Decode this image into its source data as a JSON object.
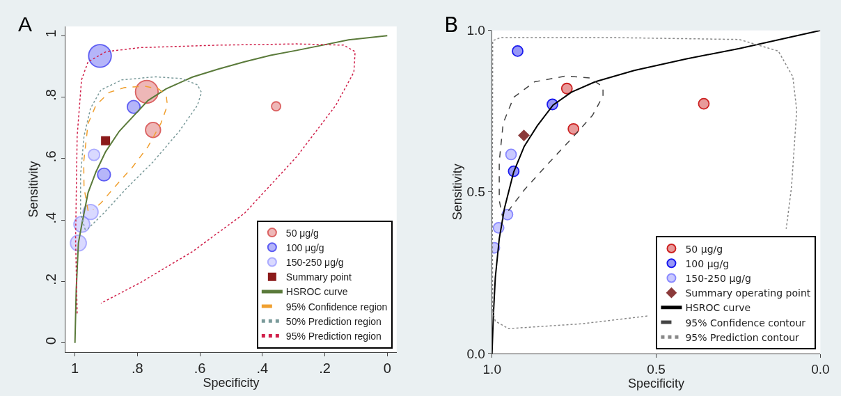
{
  "chart_data": [
    {
      "type": "scatter",
      "title": "A",
      "xlabel": "Specificity",
      "ylabel": "Sensitivity",
      "xlim": [
        1.03,
        -0.03
      ],
      "ylim": [
        -0.03,
        1.03
      ],
      "xticks": [
        1,
        {
          "value": 0.8,
          "label": ".8"
        },
        {
          "value": 0.6,
          "label": ".6"
        },
        {
          "value": 0.4,
          "label": ".4"
        },
        {
          "value": 0.2,
          "label": ".2"
        },
        0
      ],
      "yticks": [
        0,
        {
          "value": 0.2,
          "label": ".2"
        },
        {
          "value": 0.4,
          "label": ".4"
        },
        {
          "value": 0.6,
          "label": ".6"
        },
        {
          "value": 0.8,
          "label": ".8"
        },
        1
      ],
      "legend": "bottom right",
      "series": [
        {
          "name": "50 μg/g",
          "type": "bubble",
          "color": "#cc2020",
          "marker": "circle",
          "x": [
            0.77,
            0.75,
            0.356
          ],
          "values": [
            0.817,
            0.693,
            0.77
          ],
          "sizes": [
            1,
            0.44,
            0.16
          ]
        },
        {
          "name": "100 μg/g",
          "type": "bubble",
          "color": "#1a1aee",
          "marker": "circle",
          "x": [
            0.92,
            0.812,
            0.907
          ],
          "values": [
            0.934,
            0.768,
            0.548
          ],
          "sizes": [
            1,
            0.32,
            0.32
          ]
        },
        {
          "name": "150-250 μg/g",
          "type": "bubble",
          "color": "#8888ff",
          "marker": "circle",
          "x": [
            0.939,
            0.95,
            0.978,
            0.989
          ],
          "values": [
            0.612,
            0.426,
            0.386,
            0.325
          ],
          "sizes": [
            0.25,
            0.44,
            0.49,
            0.49
          ]
        },
        {
          "name": "Summary point",
          "color": "#8b1a1a",
          "marker": "square",
          "x": [
            0.902
          ],
          "values": [
            0.658
          ]
        },
        {
          "name": "HSROC curve",
          "type": "line",
          "color": "#5a7a3a",
          "line_style": "solid",
          "marker": "none",
          "x": [
            1,
            0.996,
            0.989,
            0.978,
            0.958,
            0.933,
            0.902,
            0.858,
            0.812,
            0.766,
            0.708,
            0.624,
            0.541,
            0.457,
            0.374,
            0.29,
            0.207,
            0.124,
            0
          ],
          "values": [
            0,
            0.171,
            0.325,
            0.386,
            0.489,
            0.556,
            0.622,
            0.689,
            0.739,
            0.789,
            0.827,
            0.865,
            0.891,
            0.915,
            0.936,
            0.952,
            0.969,
            0.986,
            1
          ]
        },
        {
          "name": "95% Confidence region",
          "type": "line",
          "color": "#f0a030",
          "line_style": "dashed",
          "marker": "none",
          "x": [
            0.958,
            0.971,
            0.972,
            0.958,
            0.933,
            0.891,
            0.841,
            0.775,
            0.733,
            0.708,
            0.704,
            0.725,
            0.766,
            0.816,
            0.875,
            0.917,
            0.942
          ],
          "values": [
            0.43,
            0.505,
            0.589,
            0.714,
            0.773,
            0.815,
            0.831,
            0.835,
            0.827,
            0.806,
            0.773,
            0.714,
            0.639,
            0.572,
            0.505,
            0.455,
            0.434
          ]
        },
        {
          "name": "50% Prediction region",
          "type": "line",
          "color": "#7a9a9a",
          "line_style": "dotted",
          "marker": "none",
          "x": [
            0.967,
            0.982,
            0.982,
            0.971,
            0.95,
            0.917,
            0.85,
            0.741,
            0.658,
            0.608,
            0.595,
            0.608,
            0.666,
            0.75,
            0.833,
            0.908,
            0.958
          ],
          "values": [
            0.368,
            0.422,
            0.547,
            0.673,
            0.764,
            0.823,
            0.856,
            0.866,
            0.86,
            0.84,
            0.815,
            0.773,
            0.689,
            0.589,
            0.505,
            0.422,
            0.372
          ]
        },
        {
          "name": "95% Prediction region",
          "type": "line",
          "color": "#d0204a",
          "line_style": "dotted",
          "marker": "none",
          "x": [
            0.993,
            0.998,
            0.993,
            0.979,
            0.958,
            0.9,
            0.791,
            0.541,
            0.29,
            0.14,
            0.103,
            0.107,
            0.165,
            0.29,
            0.457,
            0.624,
            0.791,
            0.917
          ],
          "values": [
            0.096,
            0.338,
            0.673,
            0.856,
            0.915,
            0.948,
            0.961,
            0.969,
            0.973,
            0.969,
            0.948,
            0.881,
            0.773,
            0.606,
            0.422,
            0.297,
            0.196,
            0.129
          ]
        }
      ]
    },
    {
      "type": "scatter",
      "title": "B",
      "xlabel": "Specificity",
      "ylabel": "Sensitivity",
      "xlim": [
        1,
        0
      ],
      "ylim": [
        0,
        1
      ],
      "xticks": [
        {
          "value": 1,
          "label": "1.0"
        },
        0.5,
        {
          "value": 0,
          "label": "0.0"
        }
      ],
      "yticks": [
        {
          "value": 0,
          "label": "0.0"
        },
        0.5,
        {
          "value": 1,
          "label": "1.0"
        }
      ],
      "legend": "bottom right",
      "series": [
        {
          "name": "50 μg/g",
          "color": "#cc2020",
          "marker": "circle",
          "x": [
            0.772,
            0.752,
            0.355
          ],
          "values": [
            0.82,
            0.695,
            0.773
          ]
        },
        {
          "name": "100 μg/g",
          "color": "#1a1aee",
          "marker": "circle",
          "x": [
            0.922,
            0.816,
            0.934
          ],
          "values": [
            0.936,
            0.771,
            0.564
          ]
        },
        {
          "name": "150-250 μg/g",
          "color": "#8888ff",
          "marker": "circle",
          "x": [
            0.942,
            0.953,
            0.98,
            0.993
          ],
          "values": [
            0.616,
            0.43,
            0.389,
            0.327
          ]
        },
        {
          "name": "Summary operating point",
          "color": "#8b3a3a",
          "marker": "diamond",
          "x": [
            0.903
          ],
          "values": [
            0.675
          ]
        },
        {
          "name": "HSROC curve",
          "type": "line",
          "color": "#000000",
          "line_style": "solid",
          "marker": "none",
          "x": [
            1,
            0.996,
            0.99,
            0.978,
            0.962,
            0.934,
            0.902,
            0.862,
            0.814,
            0.758,
            0.686,
            0.567,
            0.407,
            0.247,
            0.088,
            0
          ],
          "values": [
            0,
            0.116,
            0.235,
            0.355,
            0.45,
            0.562,
            0.641,
            0.705,
            0.769,
            0.809,
            0.841,
            0.876,
            0.912,
            0.944,
            0.98,
            1
          ]
        },
        {
          "name": "95% Confidence contour",
          "type": "line",
          "color": "#444444",
          "line_style": "dashed",
          "marker": "none",
          "x": [
            0.966,
            0.978,
            0.978,
            0.966,
            0.934,
            0.87,
            0.774,
            0.702,
            0.662,
            0.662,
            0.694,
            0.758,
            0.838,
            0.902,
            0.95
          ],
          "values": [
            0.414,
            0.474,
            0.594,
            0.713,
            0.793,
            0.841,
            0.859,
            0.853,
            0.825,
            0.797,
            0.737,
            0.665,
            0.578,
            0.506,
            0.442
          ]
        },
        {
          "name": "95% Prediction contour",
          "type": "line",
          "color": "#888888",
          "line_style": "dotted",
          "marker": "none",
          "x": [
            0.998,
            0.999,
            0.998,
            0.974,
            0.646,
            0.247,
            0.128,
            0.084,
            0.072,
            0.088,
            0.104,
            null,
            0.527,
            0.726,
            0.95,
            0.99,
            0.998
          ],
          "values": [
            0.131,
            0.434,
            0.968,
            0.978,
            0.978,
            0.972,
            0.936,
            0.857,
            0.753,
            0.514,
            0.386,
            null,
            0.116,
            0.092,
            0.077,
            0.1,
            0.131
          ]
        }
      ]
    }
  ]
}
